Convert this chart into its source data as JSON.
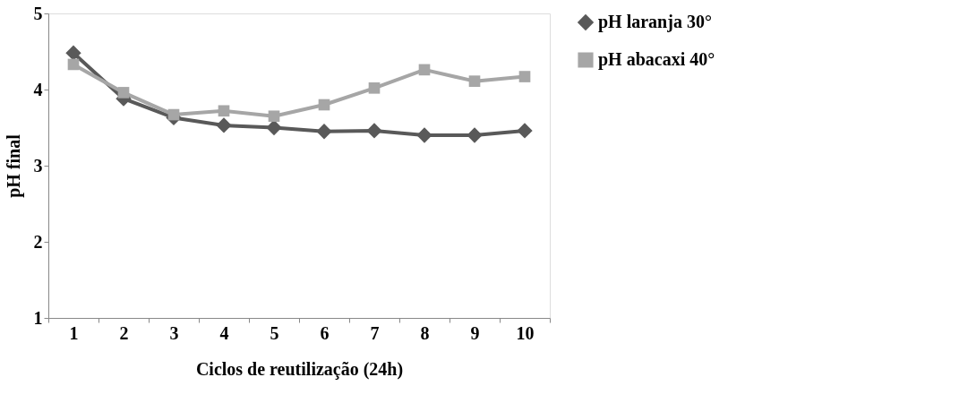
{
  "chart_data": {
    "type": "line",
    "xlabel": "Ciclos de reutilização (24h)",
    "ylabel": "pH final",
    "categories": [
      "1",
      "2",
      "3",
      "4",
      "5",
      "6",
      "7",
      "8",
      "9",
      "10"
    ],
    "ylim": [
      1,
      5
    ],
    "yticks": [
      1,
      2,
      3,
      4,
      5
    ],
    "grid": false,
    "legend": "right",
    "series": [
      {
        "name": "pH laranja 30°",
        "color": "#595959",
        "marker": "diamond",
        "values": [
          4.48,
          3.88,
          3.63,
          3.53,
          3.5,
          3.45,
          3.46,
          3.4,
          3.4,
          3.46
        ]
      },
      {
        "name": "pH abacaxi 40°",
        "color": "#a6a6a6",
        "marker": "square",
        "values": [
          4.33,
          3.96,
          3.67,
          3.72,
          3.65,
          3.8,
          4.02,
          4.26,
          4.11,
          4.17
        ]
      }
    ]
  }
}
